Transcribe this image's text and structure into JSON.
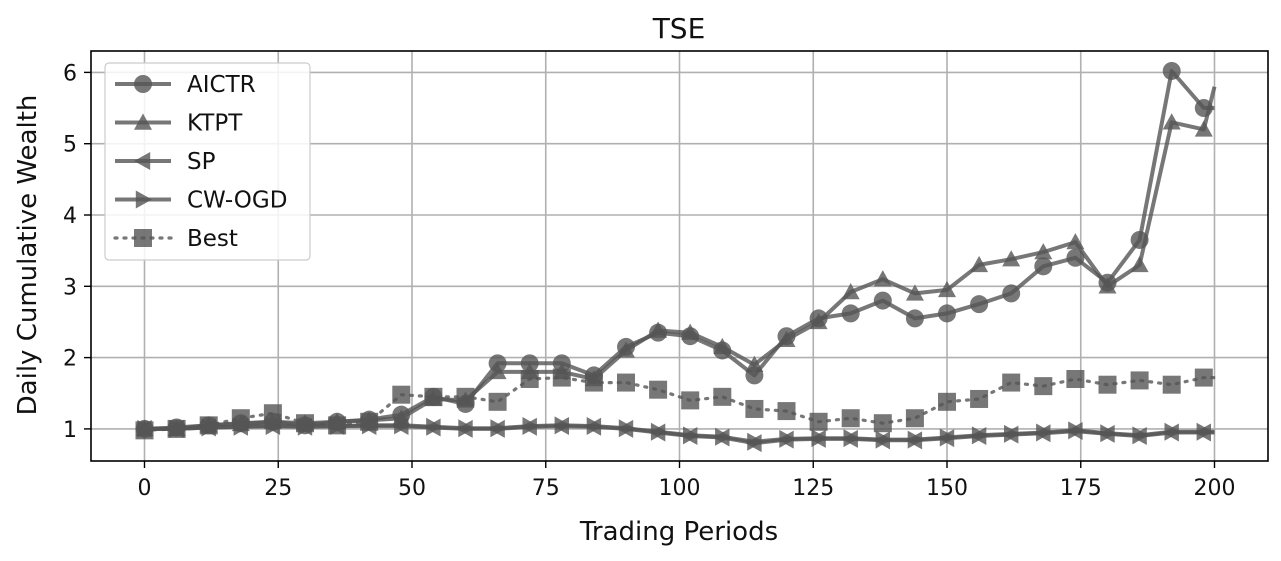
{
  "chart_data": {
    "type": "line",
    "title": "TSE",
    "xlabel": "Trading Periods",
    "ylabel": "Daily Cumulative Wealth",
    "xlim": [
      -10,
      210
    ],
    "ylim": [
      0.55,
      6.3
    ],
    "xticks": [
      0,
      25,
      50,
      75,
      100,
      125,
      150,
      175,
      200
    ],
    "yticks": [
      1,
      2,
      3,
      4,
      5,
      6
    ],
    "grid": true,
    "legend_position": "top-left",
    "series": [
      {
        "name": "AICTR",
        "marker": "circle",
        "color": "#555555",
        "x": [
          0,
          6,
          12,
          18,
          24,
          30,
          36,
          42,
          48,
          54,
          60,
          66,
          72,
          78,
          84,
          90,
          96,
          102,
          108,
          114,
          120,
          126,
          132,
          138,
          144,
          150,
          156,
          162,
          168,
          174,
          180,
          186,
          192,
          198,
          200
        ],
        "y": [
          1.0,
          1.02,
          1.05,
          1.08,
          1.1,
          1.05,
          1.1,
          1.13,
          1.2,
          1.45,
          1.35,
          1.92,
          1.92,
          1.92,
          1.75,
          2.15,
          2.35,
          2.3,
          2.1,
          1.75,
          2.3,
          2.55,
          2.62,
          2.8,
          2.55,
          2.62,
          2.75,
          2.9,
          3.28,
          3.4,
          3.05,
          3.65,
          6.02,
          5.5,
          5.5
        ]
      },
      {
        "name": "KTPT",
        "marker": "triangle-up",
        "color": "#555555",
        "x": [
          0,
          6,
          12,
          18,
          24,
          30,
          36,
          42,
          48,
          54,
          60,
          66,
          72,
          78,
          84,
          90,
          96,
          102,
          108,
          114,
          120,
          126,
          132,
          138,
          144,
          150,
          156,
          162,
          168,
          174,
          180,
          186,
          192,
          198,
          200
        ],
        "y": [
          1.0,
          1.0,
          1.05,
          1.07,
          1.1,
          1.08,
          1.1,
          1.12,
          1.15,
          1.42,
          1.4,
          1.8,
          1.8,
          1.8,
          1.7,
          2.1,
          2.38,
          2.35,
          2.15,
          1.9,
          2.25,
          2.5,
          2.92,
          3.1,
          2.9,
          2.95,
          3.3,
          3.38,
          3.48,
          3.62,
          3.0,
          3.3,
          5.3,
          5.2,
          5.8
        ]
      },
      {
        "name": "SP",
        "marker": "triangle-left",
        "color": "#555555",
        "x": [
          0,
          6,
          12,
          18,
          24,
          30,
          36,
          42,
          48,
          54,
          60,
          66,
          72,
          78,
          84,
          90,
          96,
          102,
          108,
          114,
          120,
          126,
          132,
          138,
          144,
          150,
          156,
          162,
          168,
          174,
          180,
          186,
          192,
          198,
          200
        ],
        "y": [
          1.0,
          1.0,
          1.02,
          1.03,
          1.04,
          1.03,
          1.04,
          1.04,
          1.04,
          1.02,
          1.0,
          1.0,
          1.03,
          1.04,
          1.03,
          1.0,
          0.95,
          0.9,
          0.88,
          0.8,
          0.85,
          0.86,
          0.86,
          0.84,
          0.84,
          0.87,
          0.9,
          0.92,
          0.94,
          0.97,
          0.93,
          0.9,
          0.95,
          0.95,
          0.95
        ]
      },
      {
        "name": "CW-OGD",
        "marker": "triangle-right",
        "color": "#555555",
        "x": [
          0,
          6,
          12,
          18,
          24,
          30,
          36,
          42,
          48,
          54,
          60,
          66,
          72,
          78,
          84,
          90,
          96,
          102,
          108,
          114,
          120,
          126,
          132,
          138,
          144,
          150,
          156,
          162,
          168,
          174,
          180,
          186,
          192,
          198,
          200
        ],
        "y": [
          1.0,
          1.0,
          1.02,
          1.03,
          1.04,
          1.03,
          1.04,
          1.05,
          1.05,
          1.03,
          1.01,
          1.01,
          1.04,
          1.05,
          1.04,
          1.01,
          0.96,
          0.91,
          0.89,
          0.82,
          0.86,
          0.87,
          0.87,
          0.85,
          0.85,
          0.88,
          0.91,
          0.93,
          0.95,
          0.98,
          0.94,
          0.91,
          0.96,
          0.96,
          0.96
        ]
      },
      {
        "name": "Best",
        "marker": "square",
        "color": "#555555",
        "dashed": true,
        "x": [
          0,
          6,
          12,
          18,
          24,
          30,
          36,
          42,
          48,
          54,
          60,
          66,
          72,
          78,
          84,
          90,
          96,
          102,
          108,
          114,
          120,
          126,
          132,
          138,
          144,
          150,
          156,
          162,
          168,
          174,
          180,
          186,
          192,
          198,
          200
        ],
        "y": [
          0.98,
          1.0,
          1.05,
          1.15,
          1.22,
          1.08,
          1.05,
          1.1,
          1.48,
          1.45,
          1.45,
          1.38,
          1.7,
          1.72,
          1.65,
          1.65,
          1.55,
          1.4,
          1.45,
          1.28,
          1.25,
          1.1,
          1.15,
          1.08,
          1.15,
          1.38,
          1.42,
          1.65,
          1.6,
          1.7,
          1.62,
          1.68,
          1.62,
          1.72,
          1.72
        ]
      }
    ]
  }
}
